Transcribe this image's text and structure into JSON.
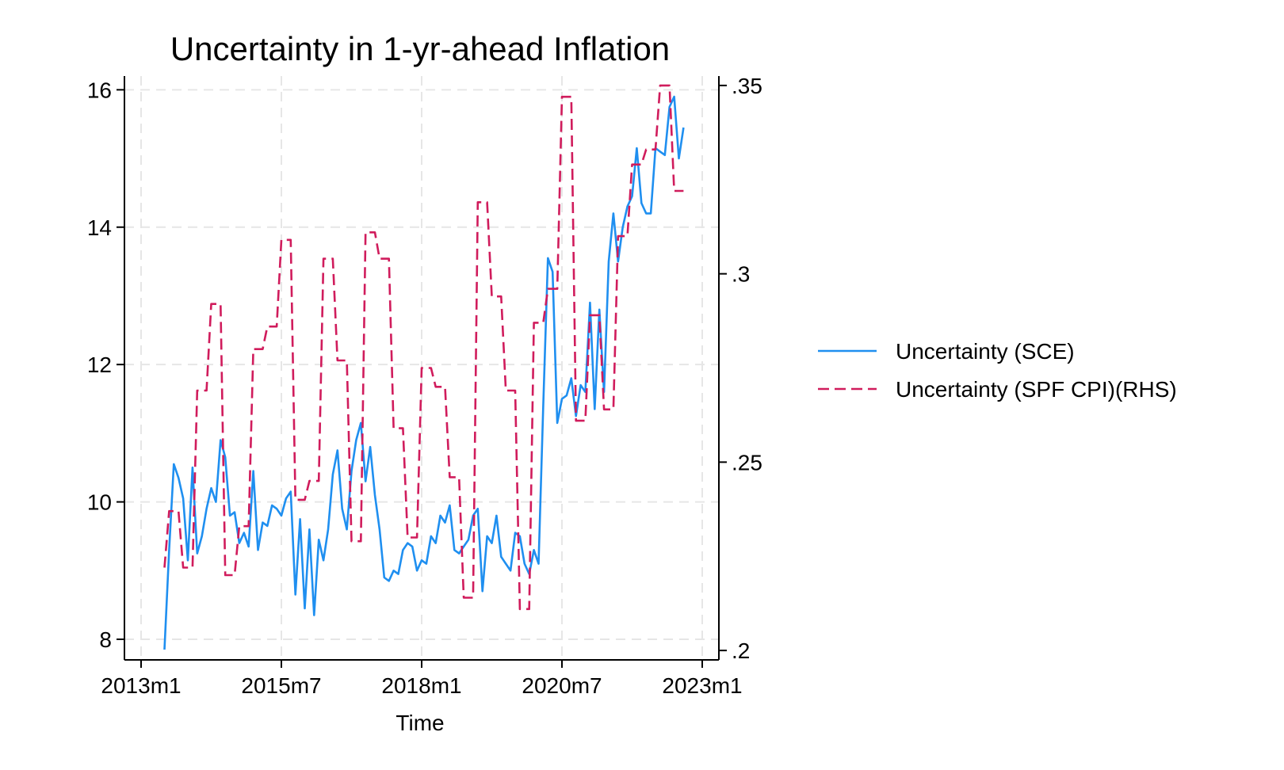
{
  "chart_data": {
    "type": "line",
    "title": "Uncertainty in 1-yr-ahead Inflation",
    "xlabel": "Time",
    "ylabel": "",
    "ylabel_right": "",
    "x_axis": {
      "type": "monthly",
      "range": [
        "2013m1",
        "2023m1"
      ],
      "ticks": [
        {
          "value": "2013m1",
          "label": "2013m1"
        },
        {
          "value": "2015m7",
          "label": "2015m7"
        },
        {
          "value": "2018m1",
          "label": "2018m1"
        },
        {
          "value": "2020m7",
          "label": "2020m7"
        },
        {
          "value": "2023m1",
          "label": "2023m1"
        }
      ]
    },
    "y_left": {
      "range": [
        7.7,
        16.2
      ],
      "ticks": [
        {
          "value": 8,
          "label": "8"
        },
        {
          "value": 10,
          "label": "10"
        },
        {
          "value": 12,
          "label": "12"
        },
        {
          "value": 14,
          "label": "14"
        },
        {
          "value": 16,
          "label": "16"
        }
      ]
    },
    "y_right": {
      "range": [
        0.1975,
        0.3525
      ],
      "ticks": [
        {
          "value": 0.2,
          "label": ".2"
        },
        {
          "value": 0.25,
          "label": ".25"
        },
        {
          "value": 0.3,
          "label": ".3"
        },
        {
          "value": 0.35,
          "label": ".35"
        }
      ]
    },
    "grid": true,
    "legend_position": "right",
    "series": [
      {
        "name": "Uncertainty (SCE)",
        "axis": "left",
        "color": "#1f8ff0",
        "style": "solid",
        "points": [
          [
            "2013m6",
            7.85
          ],
          [
            "2013m7",
            9.3
          ],
          [
            "2013m8",
            10.55
          ],
          [
            "2013m9",
            10.35
          ],
          [
            "2013m10",
            10.05
          ],
          [
            "2013m11",
            9.15
          ],
          [
            "2013m12",
            10.5
          ],
          [
            "2014m1",
            9.25
          ],
          [
            "2014m2",
            9.5
          ],
          [
            "2014m3",
            9.9
          ],
          [
            "2014m4",
            10.2
          ],
          [
            "2014m5",
            10.0
          ],
          [
            "2014m6",
            10.9
          ],
          [
            "2014m7",
            10.65
          ],
          [
            "2014m8",
            9.8
          ],
          [
            "2014m9",
            9.85
          ],
          [
            "2014m10",
            9.4
          ],
          [
            "2014m11",
            9.55
          ],
          [
            "2014m12",
            9.35
          ],
          [
            "2015m1",
            10.45
          ],
          [
            "2015m2",
            9.3
          ],
          [
            "2015m3",
            9.7
          ],
          [
            "2015m4",
            9.65
          ],
          [
            "2015m5",
            9.95
          ],
          [
            "2015m6",
            9.9
          ],
          [
            "2015m7",
            9.8
          ],
          [
            "2015m8",
            10.05
          ],
          [
            "2015m9",
            10.15
          ],
          [
            "2015m10",
            8.65
          ],
          [
            "2015m11",
            9.75
          ],
          [
            "2015m12",
            8.45
          ],
          [
            "2016m1",
            9.6
          ],
          [
            "2016m2",
            8.35
          ],
          [
            "2016m3",
            9.45
          ],
          [
            "2016m4",
            9.15
          ],
          [
            "2016m5",
            9.6
          ],
          [
            "2016m6",
            10.4
          ],
          [
            "2016m7",
            10.75
          ],
          [
            "2016m8",
            9.9
          ],
          [
            "2016m9",
            9.6
          ],
          [
            "2016m10",
            10.45
          ],
          [
            "2016m11",
            10.9
          ],
          [
            "2016m12",
            11.15
          ],
          [
            "2017m1",
            10.3
          ],
          [
            "2017m2",
            10.8
          ],
          [
            "2017m3",
            10.1
          ],
          [
            "2017m4",
            9.6
          ],
          [
            "2017m5",
            8.9
          ],
          [
            "2017m6",
            8.85
          ],
          [
            "2017m7",
            9.0
          ],
          [
            "2017m8",
            8.95
          ],
          [
            "2017m9",
            9.3
          ],
          [
            "2017m10",
            9.4
          ],
          [
            "2017m11",
            9.35
          ],
          [
            "2017m12",
            9.0
          ],
          [
            "2018m1",
            9.15
          ],
          [
            "2018m2",
            9.1
          ],
          [
            "2018m3",
            9.5
          ],
          [
            "2018m4",
            9.4
          ],
          [
            "2018m5",
            9.8
          ],
          [
            "2018m6",
            9.7
          ],
          [
            "2018m7",
            9.95
          ],
          [
            "2018m8",
            9.3
          ],
          [
            "2018m9",
            9.25
          ],
          [
            "2018m10",
            9.35
          ],
          [
            "2018m11",
            9.45
          ],
          [
            "2018m12",
            9.8
          ],
          [
            "2019m1",
            9.9
          ],
          [
            "2019m2",
            8.7
          ],
          [
            "2019m3",
            9.5
          ],
          [
            "2019m4",
            9.4
          ],
          [
            "2019m5",
            9.8
          ],
          [
            "2019m6",
            9.2
          ],
          [
            "2019m7",
            9.1
          ],
          [
            "2019m8",
            9.0
          ],
          [
            "2019m9",
            9.55
          ],
          [
            "2019m10",
            9.5
          ],
          [
            "2019m11",
            9.1
          ],
          [
            "2019m12",
            8.95
          ],
          [
            "2020m1",
            9.3
          ],
          [
            "2020m2",
            9.1
          ],
          [
            "2020m3",
            11.4
          ],
          [
            "2020m4",
            13.55
          ],
          [
            "2020m5",
            13.35
          ],
          [
            "2020m6",
            11.15
          ],
          [
            "2020m7",
            11.5
          ],
          [
            "2020m8",
            11.55
          ],
          [
            "2020m9",
            11.8
          ],
          [
            "2020m10",
            11.25
          ],
          [
            "2020m11",
            11.7
          ],
          [
            "2020m12",
            11.6
          ],
          [
            "2021m1",
            12.9
          ],
          [
            "2021m2",
            11.35
          ],
          [
            "2021m3",
            12.8
          ],
          [
            "2021m4",
            11.6
          ],
          [
            "2021m5",
            13.5
          ],
          [
            "2021m6",
            14.2
          ],
          [
            "2021m7",
            13.5
          ],
          [
            "2021m8",
            14.0
          ],
          [
            "2021m9",
            14.3
          ],
          [
            "2021m10",
            14.45
          ],
          [
            "2021m11",
            15.15
          ],
          [
            "2021m12",
            14.35
          ],
          [
            "2022m1",
            14.2
          ],
          [
            "2022m2",
            14.2
          ],
          [
            "2022m3",
            15.15
          ],
          [
            "2022m4",
            15.1
          ],
          [
            "2022m5",
            15.05
          ],
          [
            "2022m6",
            15.75
          ],
          [
            "2022m7",
            15.9
          ],
          [
            "2022m8",
            15.0
          ],
          [
            "2022m9",
            15.45
          ]
        ]
      },
      {
        "name": "Uncertainty (SPF CPI)(RHS)",
        "axis": "right",
        "color": "#d01c5c",
        "style": "dashed",
        "points": [
          [
            "2013m6",
            0.222
          ],
          [
            "2013m7",
            0.237
          ],
          [
            "2013m8",
            0.237
          ],
          [
            "2013m9",
            0.237
          ],
          [
            "2013m10",
            0.222
          ],
          [
            "2013m11",
            0.222
          ],
          [
            "2013m12",
            0.222
          ],
          [
            "2014m1",
            0.269
          ],
          [
            "2014m2",
            0.269
          ],
          [
            "2014m3",
            0.269
          ],
          [
            "2014m4",
            0.292
          ],
          [
            "2014m5",
            0.292
          ],
          [
            "2014m6",
            0.292
          ],
          [
            "2014m7",
            0.22
          ],
          [
            "2014m8",
            0.22
          ],
          [
            "2014m9",
            0.22
          ],
          [
            "2014m10",
            0.233
          ],
          [
            "2014m11",
            0.233
          ],
          [
            "2014m12",
            0.233
          ],
          [
            "2015m1",
            0.28
          ],
          [
            "2015m2",
            0.28
          ],
          [
            "2015m3",
            0.28
          ],
          [
            "2015m4",
            0.286
          ],
          [
            "2015m5",
            0.286
          ],
          [
            "2015m6",
            0.286
          ],
          [
            "2015m7",
            0.309
          ],
          [
            "2015m8",
            0.309
          ],
          [
            "2015m9",
            0.309
          ],
          [
            "2015m10",
            0.24
          ],
          [
            "2015m11",
            0.24
          ],
          [
            "2015m12",
            0.24
          ],
          [
            "2016m1",
            0.245
          ],
          [
            "2016m2",
            0.245
          ],
          [
            "2016m3",
            0.245
          ],
          [
            "2016m4",
            0.304
          ],
          [
            "2016m5",
            0.304
          ],
          [
            "2016m6",
            0.304
          ],
          [
            "2016m7",
            0.277
          ],
          [
            "2016m8",
            0.277
          ],
          [
            "2016m9",
            0.277
          ],
          [
            "2016m10",
            0.229
          ],
          [
            "2016m11",
            0.229
          ],
          [
            "2016m12",
            0.229
          ],
          [
            "2017m1",
            0.311
          ],
          [
            "2017m2",
            0.311
          ],
          [
            "2017m3",
            0.311
          ],
          [
            "2017m4",
            0.304
          ],
          [
            "2017m5",
            0.304
          ],
          [
            "2017m6",
            0.304
          ],
          [
            "2017m7",
            0.259
          ],
          [
            "2017m8",
            0.259
          ],
          [
            "2017m9",
            0.259
          ],
          [
            "2017m10",
            0.23
          ],
          [
            "2017m11",
            0.23
          ],
          [
            "2017m12",
            0.23
          ],
          [
            "2018m1",
            0.275
          ],
          [
            "2018m2",
            0.275
          ],
          [
            "2018m3",
            0.275
          ],
          [
            "2018m4",
            0.27
          ],
          [
            "2018m5",
            0.27
          ],
          [
            "2018m6",
            0.27
          ],
          [
            "2018m7",
            0.246
          ],
          [
            "2018m8",
            0.246
          ],
          [
            "2018m9",
            0.246
          ],
          [
            "2018m10",
            0.214
          ],
          [
            "2018m11",
            0.214
          ],
          [
            "2018m12",
            0.214
          ],
          [
            "2019m1",
            0.319
          ],
          [
            "2019m2",
            0.319
          ],
          [
            "2019m3",
            0.319
          ],
          [
            "2019m4",
            0.294
          ],
          [
            "2019m5",
            0.294
          ],
          [
            "2019m6",
            0.294
          ],
          [
            "2019m7",
            0.269
          ],
          [
            "2019m8",
            0.269
          ],
          [
            "2019m9",
            0.269
          ],
          [
            "2019m10",
            0.211
          ],
          [
            "2019m11",
            0.211
          ],
          [
            "2019m12",
            0.211
          ],
          [
            "2020m1",
            0.287
          ],
          [
            "2020m2",
            0.287
          ],
          [
            "2020m3",
            0.287
          ],
          [
            "2020m4",
            0.296
          ],
          [
            "2020m5",
            0.296
          ],
          [
            "2020m6",
            0.296
          ],
          [
            "2020m7",
            0.347
          ],
          [
            "2020m8",
            0.347
          ],
          [
            "2020m9",
            0.347
          ],
          [
            "2020m10",
            0.261
          ],
          [
            "2020m11",
            0.261
          ],
          [
            "2020m12",
            0.261
          ],
          [
            "2021m1",
            0.289
          ],
          [
            "2021m2",
            0.289
          ],
          [
            "2021m3",
            0.289
          ],
          [
            "2021m4",
            0.264
          ],
          [
            "2021m5",
            0.264
          ],
          [
            "2021m6",
            0.264
          ],
          [
            "2021m7",
            0.31
          ],
          [
            "2021m8",
            0.31
          ],
          [
            "2021m9",
            0.31
          ],
          [
            "2021m10",
            0.329
          ],
          [
            "2021m11",
            0.329
          ],
          [
            "2021m12",
            0.329
          ],
          [
            "2022m1",
            0.333
          ],
          [
            "2022m2",
            0.333
          ],
          [
            "2022m3",
            0.333
          ],
          [
            "2022m4",
            0.35
          ],
          [
            "2022m5",
            0.35
          ],
          [
            "2022m6",
            0.35
          ],
          [
            "2022m7",
            0.322
          ],
          [
            "2022m8",
            0.322
          ],
          [
            "2022m9",
            0.322
          ]
        ]
      }
    ]
  }
}
